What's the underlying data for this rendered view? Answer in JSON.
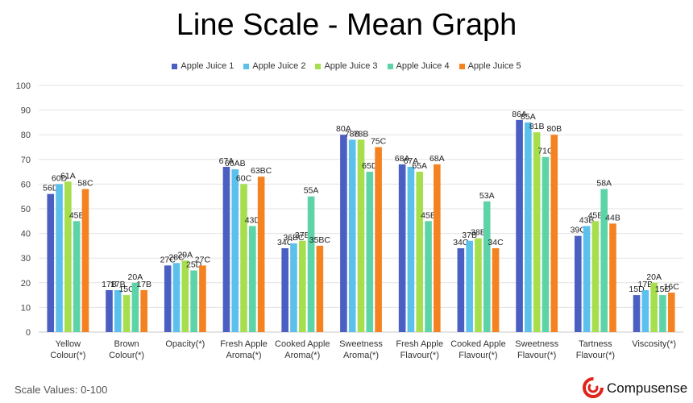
{
  "title": "Line Scale - Mean Graph",
  "footer_note": "Scale Values: 0-100",
  "brand": {
    "name": "Compusense",
    "logo_icon": "compusense-logo-icon",
    "logo_color": "#e2231a"
  },
  "chart_data": {
    "type": "bar",
    "title": "Line Scale - Mean Graph",
    "xlabel": "",
    "ylabel": "",
    "ylim": [
      0,
      100
    ],
    "yticks": [
      0,
      10,
      20,
      30,
      40,
      50,
      60,
      70,
      80,
      90,
      100
    ],
    "grid": true,
    "legend_position": "top",
    "categories": [
      [
        "Yellow",
        "Colour(*)"
      ],
      [
        "Brown",
        "Colour(*)"
      ],
      [
        "Opacity(*)"
      ],
      [
        "Fresh Apple",
        "Aroma(*)"
      ],
      [
        "Cooked Apple",
        "Aroma(*)"
      ],
      [
        "Sweetness",
        "Aroma(*)"
      ],
      [
        "Fresh Apple",
        "Flavour(*)"
      ],
      [
        "Cooked Apple",
        "Flavour(*)"
      ],
      [
        "Sweetness",
        "Flavour(*)"
      ],
      [
        "Tartness",
        "Flavour(*)"
      ],
      [
        "Viscosity(*)"
      ]
    ],
    "series": [
      {
        "name": "Apple Juice 1",
        "color": "#4a5fc1",
        "values": [
          56,
          17,
          27,
          67,
          34,
          80,
          68,
          34,
          86,
          39,
          15
        ],
        "labels": [
          "56D",
          "17B",
          "27C",
          "67A",
          "34C",
          "80A",
          "68A",
          "34C",
          "86A",
          "39C",
          "15D"
        ]
      },
      {
        "name": "Apple Juice 2",
        "color": "#5bc0eb",
        "values": [
          60,
          17,
          28,
          66,
          36,
          78,
          67,
          37,
          85,
          43,
          17
        ],
        "labels": [
          "60D",
          "17B",
          "28C",
          "66AB",
          "36BC",
          "78B",
          "67A",
          "37B",
          "85A",
          "43B",
          "17B"
        ]
      },
      {
        "name": "Apple Juice 3",
        "color": "#a6de4e",
        "values": [
          61,
          15,
          29,
          60,
          37,
          78,
          65,
          38,
          81,
          45,
          20
        ],
        "labels": [
          "61A",
          "15C",
          "29A",
          "60C",
          "37B",
          "78B",
          "65A",
          "38B",
          "81B",
          "45B",
          "20A"
        ]
      },
      {
        "name": "Apple Juice 4",
        "color": "#5dd3a8",
        "values": [
          45,
          20,
          25,
          43,
          55,
          65,
          45,
          53,
          71,
          58,
          15
        ],
        "labels": [
          "45E",
          "20A",
          "25D",
          "43D",
          "55A",
          "65D",
          "45B",
          "53A",
          "71C",
          "58A",
          "15D"
        ]
      },
      {
        "name": "Apple Juice 5",
        "color": "#f58220",
        "values": [
          58,
          17,
          27,
          63,
          35,
          75,
          68,
          34,
          80,
          44,
          16
        ],
        "labels": [
          "58C",
          "17B",
          "27C",
          "63BC",
          "35BC",
          "75C",
          "68A",
          "34C",
          "80B",
          "44B",
          "16C"
        ]
      }
    ]
  }
}
